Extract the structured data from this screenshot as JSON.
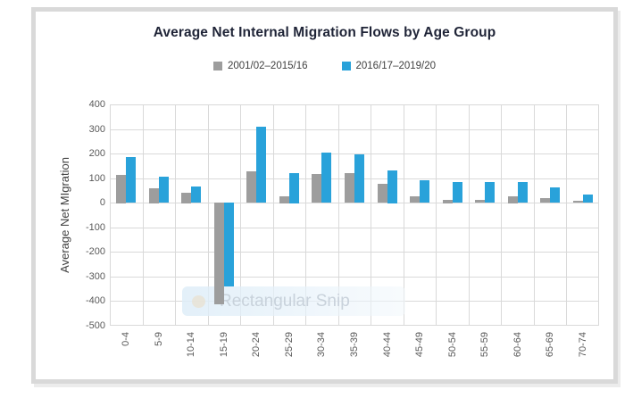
{
  "chart_data": {
    "type": "bar",
    "title": "Average Net Internal Migration Flows by Age Group",
    "xlabel": "",
    "ylabel": "Average Net MIgration",
    "ylim": [
      -500,
      400
    ],
    "ytick_step": 100,
    "grid": true,
    "legend_position": "top-center",
    "categories": [
      "0-4",
      "5-9",
      "10-14",
      "15-19",
      "20-24",
      "25-29",
      "30-34",
      "35-39",
      "40-44",
      "45-49",
      "50-54",
      "55-59",
      "60-64",
      "65-69",
      "70-74"
    ],
    "series": [
      {
        "name": "2001/02–2015/16",
        "color": "#9d9d9d",
        "values": [
          115,
          60,
          42,
          -415,
          127,
          28,
          117,
          120,
          77,
          25,
          13,
          12,
          28,
          19,
          7
        ]
      },
      {
        "name": "2016/17–2019/20",
        "color": "#29a2da",
        "values": [
          185,
          105,
          65,
          -340,
          310,
          122,
          204,
          196,
          133,
          90,
          84,
          84,
          83,
          61,
          34
        ]
      }
    ]
  },
  "watermark": {
    "label": "Rectangular Snip"
  },
  "colors": {
    "card_border": "#d9d9d9",
    "gridline": "#d9d9d9",
    "tick_text": "#595959",
    "title_text": "#1f2437",
    "legend_text": "#404040",
    "axis_title_text": "#404040",
    "bar_gray": "#9d9d9d",
    "bar_blue": "#29a2da",
    "background": "#ffffff"
  }
}
